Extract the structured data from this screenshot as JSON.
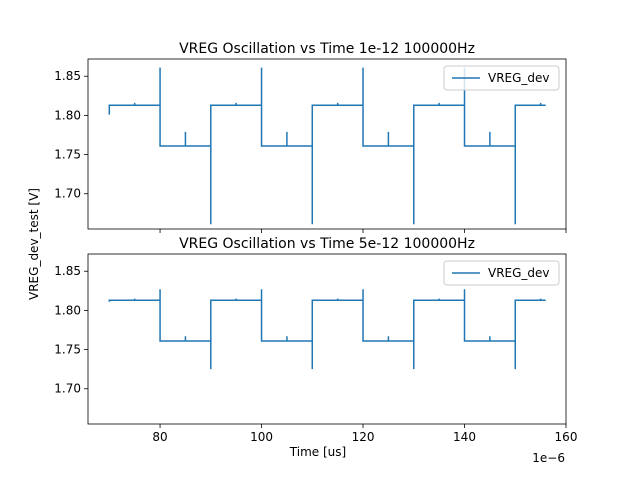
{
  "figure": {
    "shared_ylabel": "VREG_dev_test [V]",
    "xlabel": "Time [us]",
    "offset_text": "1e−6"
  },
  "chart_data": [
    {
      "type": "line",
      "title": "VREG Oscillation vs Time 1e-12 100000Hz",
      "xlim": [
        65.8,
        160
      ],
      "ylim": [
        1.655,
        1.872
      ],
      "yticks": [
        1.7,
        1.75,
        1.8,
        1.85
      ],
      "ytick_labels": [
        "1.70",
        "1.75",
        "1.80",
        "1.85"
      ],
      "xticks": [
        80,
        100,
        120,
        140,
        160
      ],
      "xtick_labels": [],
      "grid": false,
      "legend_placement": "top-right",
      "series": [
        {
          "name": "VREG_dev",
          "color": "#1f77b4",
          "x": [
            70,
            70,
            70,
            75,
            75,
            75,
            80,
            80,
            80,
            80,
            85,
            85,
            85,
            90,
            90,
            90,
            90,
            95,
            95,
            95,
            100,
            100,
            100,
            100,
            105,
            105,
            105,
            110,
            110,
            110,
            110,
            115,
            115,
            115,
            120,
            120,
            120,
            120,
            125,
            125,
            125,
            130,
            130,
            130,
            130,
            135,
            135,
            135,
            140,
            140,
            140,
            140,
            145,
            145,
            145,
            150,
            150,
            150,
            150,
            155,
            155,
            155,
            156
          ],
          "y": [
            1.801,
            1.813,
            1.813,
            1.813,
            1.816,
            1.813,
            1.813,
            1.861,
            1.761,
            1.761,
            1.761,
            1.779,
            1.761,
            1.761,
            1.661,
            1.813,
            1.813,
            1.813,
            1.816,
            1.813,
            1.813,
            1.861,
            1.761,
            1.761,
            1.761,
            1.779,
            1.761,
            1.761,
            1.661,
            1.813,
            1.813,
            1.813,
            1.816,
            1.813,
            1.813,
            1.861,
            1.761,
            1.761,
            1.761,
            1.779,
            1.761,
            1.761,
            1.661,
            1.813,
            1.813,
            1.813,
            1.816,
            1.813,
            1.813,
            1.861,
            1.761,
            1.761,
            1.761,
            1.779,
            1.761,
            1.761,
            1.661,
            1.813,
            1.813,
            1.813,
            1.816,
            1.813,
            1.813
          ]
        }
      ]
    },
    {
      "type": "line",
      "title": "VREG Oscillation vs Time 5e-12 100000Hz",
      "xlim": [
        65.8,
        160
      ],
      "ylim": [
        1.655,
        1.872
      ],
      "yticks": [
        1.7,
        1.75,
        1.8,
        1.85
      ],
      "ytick_labels": [
        "1.70",
        "1.75",
        "1.80",
        "1.85"
      ],
      "xticks": [
        80,
        100,
        120,
        140,
        160
      ],
      "xtick_labels": [
        "80",
        "100",
        "120",
        "140",
        "160"
      ],
      "grid": false,
      "legend_placement": "top-right",
      "series": [
        {
          "name": "VREG_dev",
          "color": "#1f77b4",
          "x": [
            70,
            70,
            70,
            75,
            75,
            75,
            80,
            80,
            80,
            80,
            85,
            85,
            85,
            90,
            90,
            90,
            90,
            95,
            95,
            95,
            100,
            100,
            100,
            100,
            105,
            105,
            105,
            110,
            110,
            110,
            110,
            115,
            115,
            115,
            120,
            120,
            120,
            120,
            125,
            125,
            125,
            130,
            130,
            130,
            130,
            135,
            135,
            135,
            140,
            140,
            140,
            140,
            145,
            145,
            145,
            150,
            150,
            150,
            150,
            155,
            155,
            155,
            156
          ],
          "y": [
            1.811,
            1.813,
            1.813,
            1.813,
            1.815,
            1.813,
            1.813,
            1.827,
            1.761,
            1.761,
            1.761,
            1.767,
            1.761,
            1.761,
            1.725,
            1.813,
            1.813,
            1.813,
            1.815,
            1.813,
            1.813,
            1.827,
            1.761,
            1.761,
            1.761,
            1.767,
            1.761,
            1.761,
            1.725,
            1.813,
            1.813,
            1.813,
            1.815,
            1.813,
            1.813,
            1.827,
            1.761,
            1.761,
            1.761,
            1.767,
            1.761,
            1.761,
            1.725,
            1.813,
            1.813,
            1.813,
            1.815,
            1.813,
            1.813,
            1.827,
            1.761,
            1.761,
            1.761,
            1.767,
            1.761,
            1.761,
            1.725,
            1.813,
            1.813,
            1.813,
            1.815,
            1.813,
            1.813
          ]
        }
      ]
    }
  ]
}
